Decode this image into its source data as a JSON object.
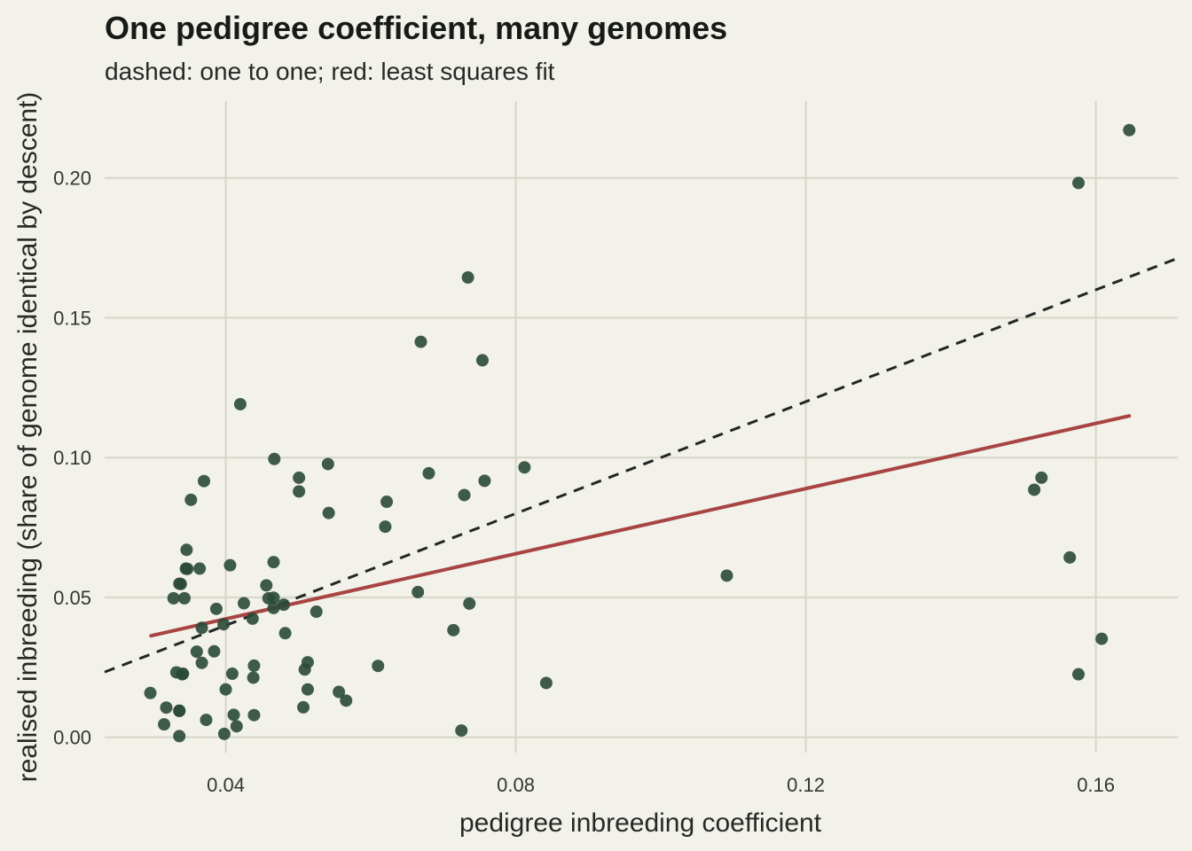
{
  "chart_data": {
    "type": "scatter",
    "title": "One pedigree coefficient, many genomes",
    "subtitle": "dashed: one to one; red: least squares fit",
    "xlabel": "pedigree inbreeding coefficient",
    "ylabel": "realised inbreeding (share of genome identical by descent)",
    "xlim": [
      0.0233,
      0.1713
    ],
    "ylim": [
      -0.0055,
      0.2275
    ],
    "x_ticks": [
      {
        "value": 0.04,
        "label": "0.04"
      },
      {
        "value": 0.08,
        "label": "0.08"
      },
      {
        "value": 0.12,
        "label": "0.12"
      },
      {
        "value": 0.16,
        "label": "0.16"
      }
    ],
    "y_ticks": [
      {
        "value": 0.0,
        "label": "0.00"
      },
      {
        "value": 0.05,
        "label": "0.05"
      },
      {
        "value": 0.1,
        "label": "0.10"
      },
      {
        "value": 0.15,
        "label": "0.15"
      },
      {
        "value": 0.2,
        "label": "0.20"
      }
    ],
    "grid": true,
    "colors": {
      "background": "#f2f1ea",
      "grid": "#d7d6c8",
      "points": "#2a4a37",
      "fit_line": "#a84442",
      "identity_line": "#222624"
    },
    "identity_line": {
      "x": [
        0.0233,
        0.1713
      ],
      "y": [
        0.0233,
        0.1713
      ],
      "style": "dashed"
    },
    "fit_line": {
      "x": [
        0.0297,
        0.1646
      ],
      "y": [
        0.0363,
        0.1149
      ],
      "style": "solid"
    },
    "series": [
      {
        "points": [
          [
            0.0296,
            0.0158
          ],
          [
            0.0318,
            0.0106
          ],
          [
            0.0315,
            0.0046
          ],
          [
            0.0336,
            0.0095
          ],
          [
            0.0336,
            0.0094
          ],
          [
            0.0336,
            0.0004
          ],
          [
            0.0332,
            0.0232
          ],
          [
            0.0341,
            0.0227
          ],
          [
            0.034,
            0.0225
          ],
          [
            0.0328,
            0.0497
          ],
          [
            0.0336,
            0.0549
          ],
          [
            0.0338,
            0.0548
          ],
          [
            0.0343,
            0.0497
          ],
          [
            0.0345,
            0.0603
          ],
          [
            0.0347,
            0.0602
          ],
          [
            0.0346,
            0.067
          ],
          [
            0.0352,
            0.0849
          ],
          [
            0.0364,
            0.0603
          ],
          [
            0.0367,
            0.0266
          ],
          [
            0.036,
            0.0306
          ],
          [
            0.0367,
            0.0391
          ],
          [
            0.037,
            0.0916
          ],
          [
            0.0373,
            0.0062
          ],
          [
            0.0384,
            0.0307
          ],
          [
            0.0387,
            0.0459
          ],
          [
            0.0397,
            0.0404
          ],
          [
            0.0398,
            0.0012
          ],
          [
            0.04,
            0.0171
          ],
          [
            0.0406,
            0.0615
          ],
          [
            0.0409,
            0.0227
          ],
          [
            0.0411,
            0.008
          ],
          [
            0.0415,
            0.0039
          ],
          [
            0.042,
            0.1191
          ],
          [
            0.0425,
            0.0479
          ],
          [
            0.0437,
            0.0424
          ],
          [
            0.0438,
            0.0213
          ],
          [
            0.0439,
            0.0256
          ],
          [
            0.0439,
            0.0079
          ],
          [
            0.0456,
            0.0543
          ],
          [
            0.0459,
            0.0497
          ],
          [
            0.0466,
            0.0499
          ],
          [
            0.0466,
            0.0462
          ],
          [
            0.0466,
            0.0626
          ],
          [
            0.0467,
            0.0995
          ],
          [
            0.048,
            0.0474
          ],
          [
            0.0482,
            0.0372
          ],
          [
            0.0501,
            0.0928
          ],
          [
            0.0501,
            0.0879
          ],
          [
            0.0507,
            0.0107
          ],
          [
            0.0509,
            0.0242
          ],
          [
            0.0513,
            0.0268
          ],
          [
            0.0513,
            0.0171
          ],
          [
            0.0525,
            0.0449
          ],
          [
            0.0541,
            0.0977
          ],
          [
            0.0542,
            0.0802
          ],
          [
            0.0556,
            0.0162
          ],
          [
            0.0566,
            0.0131
          ],
          [
            0.061,
            0.0255
          ],
          [
            0.062,
            0.0753
          ],
          [
            0.0622,
            0.0842
          ],
          [
            0.0665,
            0.0519
          ],
          [
            0.0669,
            0.1414
          ],
          [
            0.068,
            0.0944
          ],
          [
            0.0714,
            0.0383
          ],
          [
            0.0725,
            0.0024
          ],
          [
            0.0729,
            0.0866
          ],
          [
            0.0734,
            0.1644
          ],
          [
            0.0736,
            0.0478
          ],
          [
            0.0754,
            0.1348
          ],
          [
            0.0757,
            0.0917
          ],
          [
            0.0812,
            0.0965
          ],
          [
            0.0842,
            0.0194
          ],
          [
            0.1091,
            0.0578
          ],
          [
            0.1515,
            0.0885
          ],
          [
            0.1525,
            0.0928
          ],
          [
            0.1564,
            0.0643
          ],
          [
            0.1576,
            0.1982
          ],
          [
            0.1576,
            0.0225
          ],
          [
            0.1608,
            0.0352
          ],
          [
            0.1646,
            0.2171
          ]
        ]
      }
    ]
  }
}
